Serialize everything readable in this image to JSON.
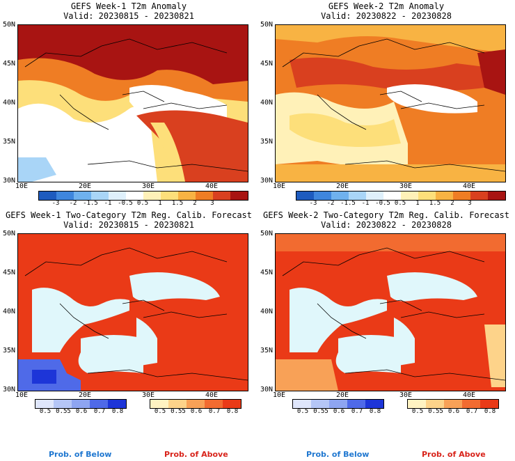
{
  "colors": {
    "sea_white": "#ffffff",
    "sea_prob": "#e0f7fb",
    "anom_scale": [
      "#1e5bbf",
      "#3f86dd",
      "#6fb1ee",
      "#a9d5f7",
      "#dff0fb",
      "#ffffff",
      "#fff1b8",
      "#fddf7a",
      "#f8b343",
      "#ef7d24",
      "#d9401f",
      "#a81412"
    ],
    "below_scale": [
      "#dfe6fb",
      "#b5c6f6",
      "#8ea5f1",
      "#4f6ae8",
      "#1d35d8"
    ],
    "above_scale": [
      "#fff3c2",
      "#fdd38a",
      "#f8a157",
      "#f26b30",
      "#ea3a17"
    ]
  },
  "anom_ticks": [
    "-3",
    "-2",
    "-1.5",
    "-1",
    "-0.5",
    "0.5",
    "1",
    "1.5",
    "2",
    "3"
  ],
  "prob_ticks": [
    "0.5",
    "0.55",
    "0.6",
    "0.7",
    "0.8"
  ],
  "lat_labels": [
    "50N",
    "45N",
    "40N",
    "35N",
    "30N"
  ],
  "lon_labels": [
    "10E",
    "20E",
    "30E",
    "40E"
  ],
  "panels": [
    {
      "title": "GEFS Week-1 T2m Anomaly",
      "valid": "Valid: 20230815 - 20230821",
      "kind": "anomaly"
    },
    {
      "title": "GEFS Week-2 T2m Anomaly",
      "valid": "Valid: 20230822 - 20230828",
      "kind": "anomaly"
    },
    {
      "title": "GEFS Week-1 Two-Category T2m Reg. Calib. Forecast",
      "valid": "Valid: 20230815 - 20230821",
      "kind": "prob"
    },
    {
      "title": "GEFS Week-2 Two-Category T2m Reg. Calib. Forecast",
      "valid": "Valid: 20230822 - 20230828",
      "kind": "prob"
    }
  ],
  "legend": {
    "below": "Prob. of Below",
    "above": "Prob. of Above",
    "below_color": "#1f77d0",
    "above_color": "#d8231a"
  }
}
